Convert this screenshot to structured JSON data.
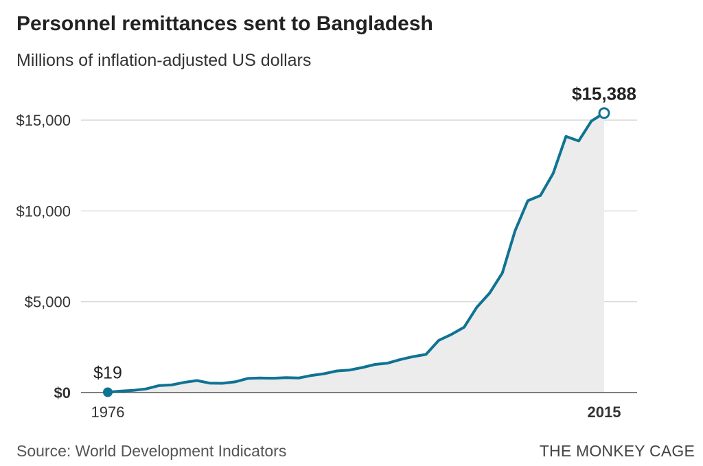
{
  "header": {
    "title": "Personnel remittances sent to Bangladesh",
    "subtitle": "Millions of inflation-adjusted US dollars"
  },
  "footer": {
    "source": "Source: World Development Indicators",
    "credit": "THE MONKEY CAGE"
  },
  "colors": {
    "line": "#0f7393",
    "area": "#ececec",
    "grid": "#cfcfcf"
  },
  "chart_data": {
    "type": "area",
    "title": "Personnel remittances sent to Bangladesh",
    "subtitle": "Millions of inflation-adjusted US dollars",
    "xlabel": "",
    "ylabel": "",
    "xlim": [
      1976,
      2015
    ],
    "ylim": [
      0,
      15000
    ],
    "y_ticks": [
      {
        "value": 0,
        "label": "$0"
      },
      {
        "value": 5000,
        "label": "$5,000"
      },
      {
        "value": 10000,
        "label": "$10,000"
      },
      {
        "value": 15000,
        "label": "$15,000"
      }
    ],
    "x_ticks": [
      {
        "value": 1976,
        "label": "1976"
      },
      {
        "value": 2015,
        "label": "2015"
      }
    ],
    "grid": true,
    "annotations": [
      {
        "x": 1976,
        "y": 19,
        "label": "$19"
      },
      {
        "x": 2015,
        "y": 15388,
        "label": "$15,388"
      }
    ],
    "x": [
      1976,
      1977,
      1978,
      1979,
      1980,
      1981,
      1982,
      1983,
      1984,
      1985,
      1986,
      1987,
      1988,
      1989,
      1990,
      1991,
      1992,
      1993,
      1994,
      1995,
      1996,
      1997,
      1998,
      1999,
      2000,
      2001,
      2002,
      2003,
      2004,
      2005,
      2006,
      2007,
      2008,
      2009,
      2010,
      2011,
      2012,
      2013,
      2014,
      2015
    ],
    "y": [
      19,
      80,
      120,
      200,
      380,
      420,
      560,
      660,
      520,
      510,
      590,
      780,
      800,
      790,
      820,
      800,
      940,
      1040,
      1190,
      1240,
      1380,
      1550,
      1620,
      1820,
      1980,
      2100,
      2870,
      3200,
      3600,
      4700,
      5480,
      6580,
      8900,
      10560,
      10850,
      12070,
      14100,
      13850,
      14950,
      15388
    ]
  }
}
